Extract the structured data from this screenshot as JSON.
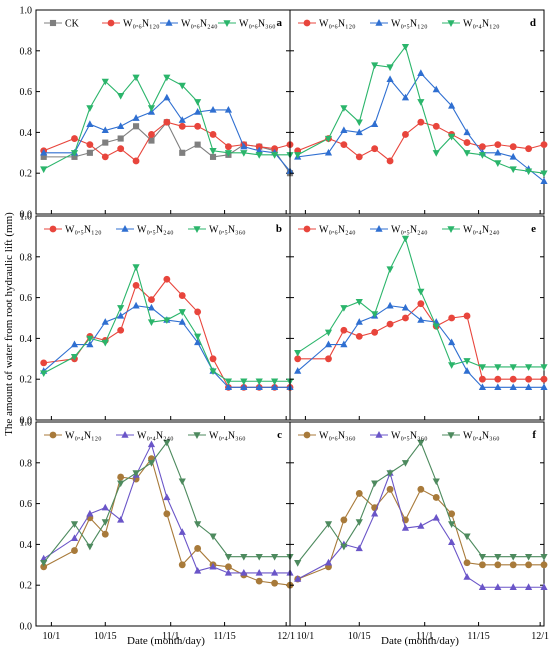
{
  "chart_data": {
    "type": "line",
    "ylabel": "The amount of water from root hydraulic lift (mm)",
    "xlabel": "Date (month/day)",
    "ylim": [
      0,
      1.0
    ],
    "yticks": [
      "0.0",
      "0.2",
      "0.4",
      "0.6",
      "0.8",
      "1.0"
    ],
    "x_days": [
      -2,
      2,
      6,
      10,
      14,
      18,
      22,
      26,
      30,
      34,
      38,
      42,
      46,
      50,
      54,
      58,
      62
    ],
    "x_tick_labels": [
      "10/1",
      "10/15",
      "11/1",
      "11/15",
      "12/1"
    ],
    "x_tick_days": [
      0,
      14,
      31,
      45,
      61
    ],
    "x_domain_days": [
      -4,
      62
    ],
    "colors": {
      "CK": "#7f7f7f",
      "red": "#e8453c",
      "blue": "#2f6fd1",
      "green": "#2bb56b",
      "brown": "#a87a3a",
      "purple": "#6a55c8",
      "darkgreen": "#4d8a5e"
    },
    "panels": [
      {
        "letter": "a",
        "legend": [
          {
            "label": "CK",
            "color": "#7f7f7f",
            "marker": "square"
          },
          {
            "label": "W₀.₆N₁₂₀",
            "color": "#e8453c",
            "marker": "circle"
          },
          {
            "label": "W₀.₆N₂₄₀",
            "color": "#2f6fd1",
            "marker": "triangle-up"
          },
          {
            "label": "W₀.₆N₃₆₀",
            "color": "#2bb56b",
            "marker": "triangle-down"
          }
        ],
        "series": [
          {
            "name": "CK",
            "color": "#7f7f7f",
            "marker": "square",
            "x": [
              -2,
              6,
              10,
              14,
              18,
              22,
              26,
              30,
              34,
              38,
              42,
              46,
              50,
              54,
              58,
              62
            ],
            "values": [
              0.28,
              0.28,
              0.3,
              0.35,
              0.37,
              0.43,
              0.36,
              0.45,
              0.3,
              0.34,
              0.28,
              0.29,
              0.34,
              0.33,
              0.31,
              0.2
            ]
          },
          {
            "name": "W₀.₆N₁₂₀",
            "color": "#e8453c",
            "marker": "circle",
            "x": [
              -2,
              6,
              10,
              14,
              18,
              22,
              26,
              30,
              34,
              38,
              42,
              46,
              50,
              54,
              58,
              62
            ],
            "values": [
              0.31,
              0.37,
              0.34,
              0.28,
              0.32,
              0.26,
              0.39,
              0.45,
              0.43,
              0.43,
              0.39,
              0.33,
              0.34,
              0.33,
              0.32,
              0.34
            ]
          },
          {
            "name": "W₀.₆N₂₄₀",
            "color": "#2f6fd1",
            "marker": "triangle-up",
            "x": [
              -2,
              6,
              10,
              14,
              18,
              22,
              26,
              30,
              34,
              38,
              42,
              46,
              50,
              54,
              58,
              62
            ],
            "values": [
              0.3,
              0.3,
              0.44,
              0.41,
              0.43,
              0.47,
              0.5,
              0.57,
              0.46,
              0.5,
              0.51,
              0.51,
              0.33,
              0.31,
              0.3,
              0.21
            ]
          },
          {
            "name": "W₀.₆N₃₆₀",
            "color": "#2bb56b",
            "marker": "triangle-down",
            "x": [
              -2,
              6,
              10,
              14,
              18,
              22,
              26,
              30,
              34,
              38,
              42,
              46,
              50,
              54,
              58,
              62
            ],
            "values": [
              0.22,
              0.3,
              0.52,
              0.65,
              0.58,
              0.67,
              0.52,
              0.67,
              0.63,
              0.55,
              0.31,
              0.3,
              0.3,
              0.29,
              0.29,
              0.29
            ]
          }
        ]
      },
      {
        "letter": "d",
        "legend": [
          {
            "label": "W₀.₆N₁₂₀",
            "color": "#e8453c",
            "marker": "circle"
          },
          {
            "label": "W₀.₅N₁₂₀",
            "color": "#2f6fd1",
            "marker": "triangle-up"
          },
          {
            "label": "W₀.₄N₁₂₀",
            "color": "#2bb56b",
            "marker": "triangle-down"
          }
        ],
        "series": [
          {
            "name": "W₀.₆N₁₂₀",
            "color": "#e8453c",
            "marker": "circle",
            "x": [
              -2,
              6,
              10,
              14,
              18,
              22,
              26,
              30,
              34,
              38,
              42,
              46,
              50,
              54,
              58,
              62
            ],
            "values": [
              0.31,
              0.37,
              0.34,
              0.28,
              0.32,
              0.26,
              0.39,
              0.45,
              0.43,
              0.39,
              0.35,
              0.33,
              0.34,
              0.33,
              0.32,
              0.34
            ]
          },
          {
            "name": "W₀.₅N₁₂₀",
            "color": "#2f6fd1",
            "marker": "triangle-up",
            "x": [
              -2,
              6,
              10,
              14,
              18,
              22,
              26,
              30,
              34,
              38,
              42,
              46,
              50,
              54,
              58,
              62
            ],
            "values": [
              0.28,
              0.3,
              0.41,
              0.4,
              0.44,
              0.66,
              0.57,
              0.69,
              0.61,
              0.53,
              0.4,
              0.3,
              0.3,
              0.28,
              0.22,
              0.16
            ]
          },
          {
            "name": "W₀.₄N₁₂₀",
            "color": "#2bb56b",
            "marker": "triangle-down",
            "x": [
              -2,
              6,
              10,
              14,
              18,
              22,
              26,
              30,
              34,
              38,
              42,
              46,
              50,
              54,
              58,
              62
            ],
            "values": [
              0.29,
              0.37,
              0.52,
              0.45,
              0.73,
              0.72,
              0.82,
              0.55,
              0.3,
              0.38,
              0.3,
              0.29,
              0.25,
              0.22,
              0.21,
              0.2
            ]
          }
        ]
      },
      {
        "letter": "b",
        "legend": [
          {
            "label": "W₀.₅N₁₂₀",
            "color": "#e8453c",
            "marker": "circle"
          },
          {
            "label": "W₀.₅N₂₄₀",
            "color": "#2f6fd1",
            "marker": "triangle-up"
          },
          {
            "label": "W₀.₅N₃₆₀",
            "color": "#2bb56b",
            "marker": "triangle-down"
          }
        ],
        "series": [
          {
            "name": "W₀.₅N₁₂₀",
            "color": "#e8453c",
            "marker": "circle",
            "x": [
              -2,
              6,
              10,
              14,
              18,
              22,
              26,
              30,
              34,
              38,
              42,
              46,
              50,
              54,
              58,
              62
            ],
            "values": [
              0.28,
              0.3,
              0.41,
              0.39,
              0.44,
              0.66,
              0.59,
              0.69,
              0.61,
              0.53,
              0.3,
              0.16,
              0.16,
              0.16,
              0.16,
              0.16
            ]
          },
          {
            "name": "W₀.₅N₂₄₀",
            "color": "#2f6fd1",
            "marker": "triangle-up",
            "x": [
              -2,
              6,
              10,
              14,
              18,
              22,
              26,
              30,
              34,
              38,
              42,
              46,
              50,
              54,
              58,
              62
            ],
            "values": [
              0.24,
              0.37,
              0.37,
              0.48,
              0.51,
              0.56,
              0.55,
              0.49,
              0.48,
              0.38,
              0.24,
              0.16,
              0.16,
              0.16,
              0.16,
              0.16
            ]
          },
          {
            "name": "W₀.₅N₃₆₀",
            "color": "#2bb56b",
            "marker": "triangle-down",
            "x": [
              -2,
              6,
              10,
              14,
              18,
              22,
              26,
              30,
              34,
              38,
              42,
              46,
              50,
              54,
              58,
              62
            ],
            "values": [
              0.23,
              0.31,
              0.4,
              0.38,
              0.55,
              0.75,
              0.48,
              0.49,
              0.53,
              0.41,
              0.24,
              0.19,
              0.19,
              0.19,
              0.19,
              0.19
            ]
          }
        ]
      },
      {
        "letter": "e",
        "legend": [
          {
            "label": "W₀.₆N₂₄₀",
            "color": "#e8453c",
            "marker": "circle"
          },
          {
            "label": "W₀.₅N₂₄₀",
            "color": "#2f6fd1",
            "marker": "triangle-up"
          },
          {
            "label": "W₀.₄N₂₄₀",
            "color": "#2bb56b",
            "marker": "triangle-down"
          }
        ],
        "series": [
          {
            "name": "W₀.₆N₂₄₀",
            "color": "#e8453c",
            "marker": "circle",
            "x": [
              -2,
              6,
              10,
              14,
              18,
              22,
              26,
              30,
              34,
              38,
              42,
              46,
              50,
              54,
              58,
              62
            ],
            "values": [
              0.3,
              0.3,
              0.44,
              0.41,
              0.43,
              0.47,
              0.5,
              0.57,
              0.46,
              0.5,
              0.51,
              0.2,
              0.2,
              0.2,
              0.2,
              0.2
            ]
          },
          {
            "name": "W₀.₅N₂₄₀",
            "color": "#2f6fd1",
            "marker": "triangle-up",
            "x": [
              -2,
              6,
              10,
              14,
              18,
              22,
              26,
              30,
              34,
              38,
              42,
              46,
              50,
              54,
              58,
              62
            ],
            "values": [
              0.24,
              0.37,
              0.37,
              0.48,
              0.51,
              0.56,
              0.55,
              0.49,
              0.48,
              0.38,
              0.24,
              0.16,
              0.16,
              0.16,
              0.16,
              0.16
            ]
          },
          {
            "name": "W₀.₄N₂₄₀",
            "color": "#2bb56b",
            "marker": "triangle-down",
            "x": [
              -2,
              6,
              10,
              14,
              18,
              22,
              26,
              30,
              34,
              38,
              42,
              46,
              50,
              54,
              58,
              62
            ],
            "values": [
              0.33,
              0.43,
              0.55,
              0.58,
              0.52,
              0.74,
              0.89,
              0.63,
              0.46,
              0.27,
              0.29,
              0.26,
              0.26,
              0.26,
              0.26,
              0.26
            ]
          }
        ]
      },
      {
        "letter": "c",
        "legend": [
          {
            "label": "W₀.₄N₁₂₀",
            "color": "#a87a3a",
            "marker": "circle"
          },
          {
            "label": "W₀.₄N₂₄₀",
            "color": "#6a55c8",
            "marker": "triangle-up"
          },
          {
            "label": "W₀.₄N₃₆₀",
            "color": "#4d8a5e",
            "marker": "triangle-down"
          }
        ],
        "series": [
          {
            "name": "W₀.₄N₁₂₀",
            "color": "#a87a3a",
            "marker": "circle",
            "x": [
              -2,
              6,
              10,
              14,
              18,
              22,
              26,
              30,
              34,
              38,
              42,
              46,
              50,
              54,
              58,
              62
            ],
            "values": [
              0.29,
              0.37,
              0.53,
              0.45,
              0.73,
              0.72,
              0.82,
              0.55,
              0.3,
              0.38,
              0.3,
              0.29,
              0.25,
              0.22,
              0.21,
              0.2
            ]
          },
          {
            "name": "W₀.₄N₂₄₀",
            "color": "#6a55c8",
            "marker": "triangle-up",
            "x": [
              -2,
              6,
              10,
              14,
              18,
              22,
              26,
              30,
              34,
              38,
              42,
              46,
              50,
              54,
              58,
              62
            ],
            "values": [
              0.33,
              0.43,
              0.55,
              0.58,
              0.52,
              0.74,
              0.89,
              0.63,
              0.46,
              0.27,
              0.29,
              0.26,
              0.26,
              0.26,
              0.26,
              0.26
            ]
          },
          {
            "name": "W₀.₄N₃₆₀",
            "color": "#4d8a5e",
            "marker": "triangle-down",
            "x": [
              -2,
              6,
              10,
              14,
              18,
              22,
              26,
              30,
              34,
              38,
              42,
              46,
              50,
              54,
              58,
              62
            ],
            "values": [
              0.31,
              0.5,
              0.39,
              0.51,
              0.7,
              0.75,
              0.8,
              0.9,
              0.71,
              0.5,
              0.44,
              0.34,
              0.34,
              0.34,
              0.34,
              0.34
            ]
          }
        ]
      },
      {
        "letter": "f",
        "legend": [
          {
            "label": "W₀.₆N₃₆₀",
            "color": "#a87a3a",
            "marker": "circle"
          },
          {
            "label": "W₀.₅N₃₆₀",
            "color": "#6a55c8",
            "marker": "triangle-up"
          },
          {
            "label": "W₀.₄N₃₆₀",
            "color": "#4d8a5e",
            "marker": "triangle-down"
          }
        ],
        "series": [
          {
            "name": "W₀.₆N₃₆₀",
            "color": "#a87a3a",
            "marker": "circle",
            "x": [
              -2,
              6,
              10,
              14,
              18,
              22,
              26,
              30,
              34,
              38,
              42,
              46,
              50,
              54,
              58,
              62
            ],
            "values": [
              0.23,
              0.29,
              0.52,
              0.65,
              0.58,
              0.67,
              0.52,
              0.67,
              0.63,
              0.55,
              0.31,
              0.3,
              0.3,
              0.3,
              0.3,
              0.3
            ]
          },
          {
            "name": "W₀.₅N₃₆₀",
            "color": "#6a55c8",
            "marker": "triangle-up",
            "x": [
              -2,
              6,
              10,
              14,
              18,
              22,
              26,
              30,
              34,
              38,
              42,
              46,
              50,
              54,
              58,
              62
            ],
            "values": [
              0.23,
              0.31,
              0.4,
              0.38,
              0.55,
              0.75,
              0.48,
              0.49,
              0.53,
              0.41,
              0.24,
              0.19,
              0.19,
              0.19,
              0.19,
              0.19
            ]
          },
          {
            "name": "W₀.₄N₃₆₀",
            "color": "#4d8a5e",
            "marker": "triangle-down",
            "x": [
              -2,
              6,
              10,
              14,
              18,
              22,
              26,
              30,
              34,
              38,
              42,
              46,
              50,
              54,
              58,
              62
            ],
            "values": [
              0.31,
              0.5,
              0.39,
              0.51,
              0.7,
              0.75,
              0.8,
              0.9,
              0.71,
              0.5,
              0.44,
              0.34,
              0.34,
              0.34,
              0.34,
              0.34
            ]
          }
        ]
      }
    ]
  }
}
